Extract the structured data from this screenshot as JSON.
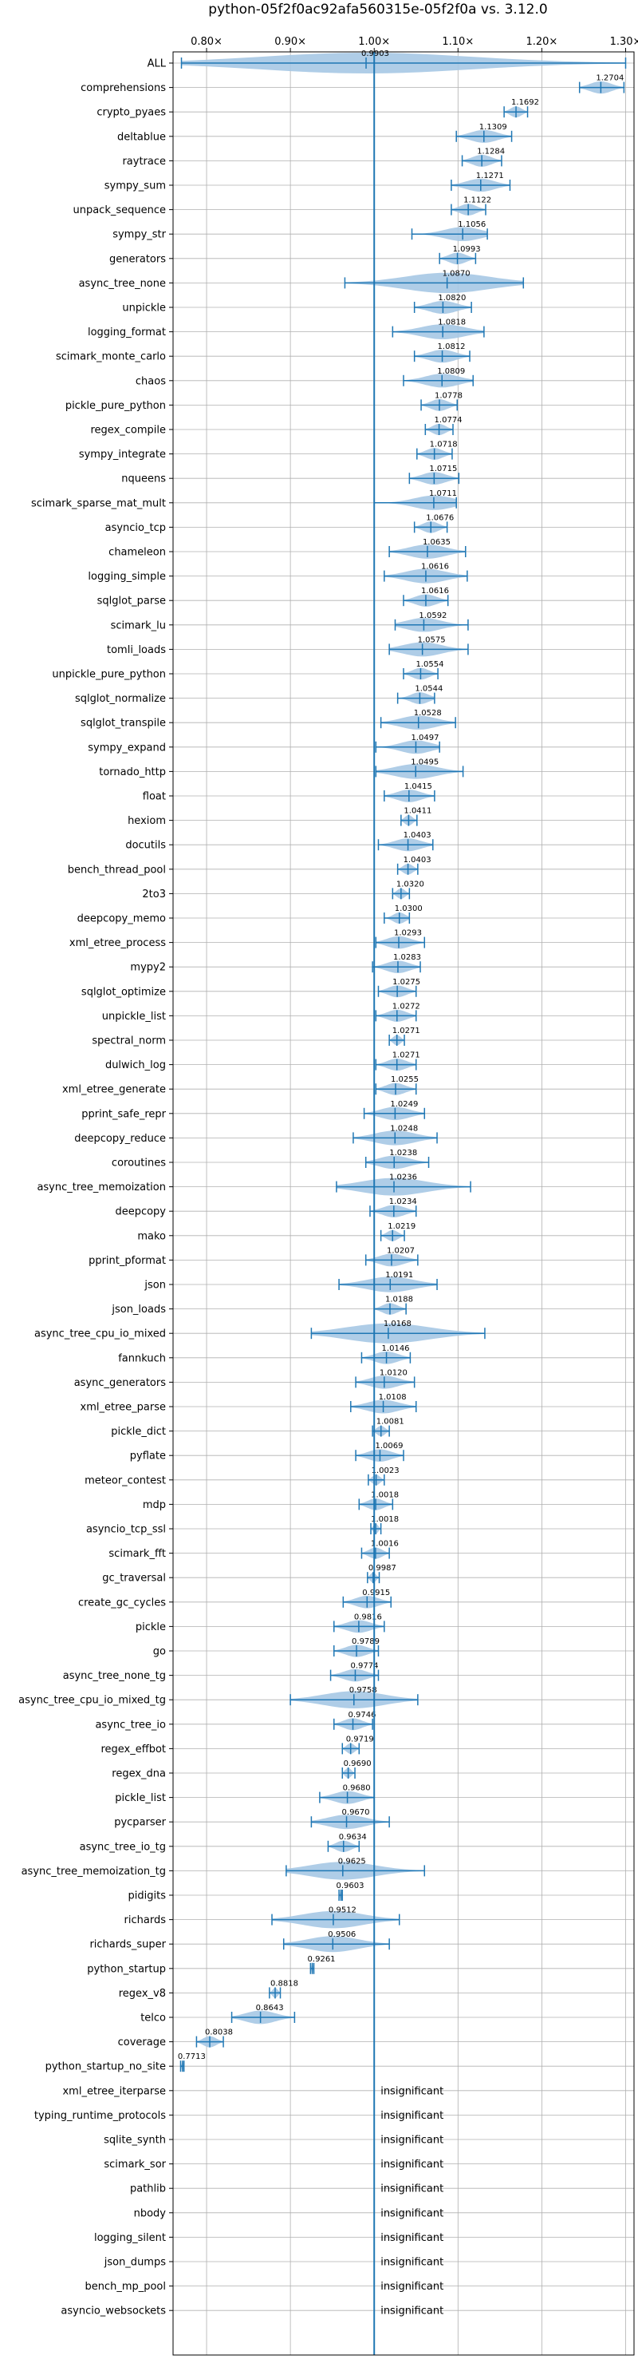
{
  "chart_data": {
    "type": "violin",
    "title": "python-05f2f0ac92afa560315e-05f2f0a vs. 3.12.0",
    "xlim": [
      0.76,
      1.31
    ],
    "xticks": [
      0.8,
      0.9,
      1.0,
      1.1,
      1.2,
      1.3
    ],
    "xtick_labels": [
      "0.80×",
      "0.90×",
      "1.00×",
      "1.10×",
      "1.20×",
      "1.30×"
    ],
    "grid": true,
    "reference_line": 1.0,
    "colors": {
      "body": "#a6c8e4",
      "line": "#1f77b4",
      "ref": "#1f77b4",
      "grid": "#b0b0b0"
    },
    "insignificant_text": "insignificant",
    "benchmarks": [
      {
        "name": "ALL",
        "value": 0.9903,
        "min": 0.77,
        "max": 1.3
      },
      {
        "name": "comprehensions",
        "value": 1.2704,
        "min": 1.245,
        "max": 1.298
      },
      {
        "name": "crypto_pyaes",
        "value": 1.1692,
        "min": 1.155,
        "max": 1.183
      },
      {
        "name": "deltablue",
        "value": 1.1309,
        "min": 1.098,
        "max": 1.164
      },
      {
        "name": "raytrace",
        "value": 1.1284,
        "min": 1.105,
        "max": 1.152
      },
      {
        "name": "sympy_sum",
        "value": 1.1271,
        "min": 1.092,
        "max": 1.162
      },
      {
        "name": "unpack_sequence",
        "value": 1.1122,
        "min": 1.092,
        "max": 1.133
      },
      {
        "name": "sympy_str",
        "value": 1.1056,
        "min": 1.045,
        "max": 1.135
      },
      {
        "name": "generators",
        "value": 1.0993,
        "min": 1.078,
        "max": 1.121
      },
      {
        "name": "async_tree_none",
        "value": 1.087,
        "min": 0.965,
        "max": 1.178
      },
      {
        "name": "unpickle",
        "value": 1.082,
        "min": 1.048,
        "max": 1.116
      },
      {
        "name": "logging_format",
        "value": 1.0818,
        "min": 1.022,
        "max": 1.131
      },
      {
        "name": "scimark_monte_carlo",
        "value": 1.0812,
        "min": 1.048,
        "max": 1.114
      },
      {
        "name": "chaos",
        "value": 1.0809,
        "min": 1.035,
        "max": 1.118
      },
      {
        "name": "pickle_pure_python",
        "value": 1.0778,
        "min": 1.056,
        "max": 1.099
      },
      {
        "name": "regex_compile",
        "value": 1.0774,
        "min": 1.061,
        "max": 1.094
      },
      {
        "name": "sympy_integrate",
        "value": 1.0718,
        "min": 1.051,
        "max": 1.093
      },
      {
        "name": "nqueens",
        "value": 1.0715,
        "min": 1.042,
        "max": 1.101
      },
      {
        "name": "scimark_sparse_mat_mult",
        "value": 1.0711,
        "min": 1.0,
        "max": 1.098
      },
      {
        "name": "asyncio_tcp",
        "value": 1.0676,
        "min": 1.048,
        "max": 1.087
      },
      {
        "name": "chameleon",
        "value": 1.0635,
        "min": 1.018,
        "max": 1.109
      },
      {
        "name": "logging_simple",
        "value": 1.0616,
        "min": 1.012,
        "max": 1.111
      },
      {
        "name": "sqlglot_parse",
        "value": 1.0616,
        "min": 1.035,
        "max": 1.088
      },
      {
        "name": "scimark_lu",
        "value": 1.0592,
        "min": 1.025,
        "max": 1.112
      },
      {
        "name": "tomli_loads",
        "value": 1.0575,
        "min": 1.018,
        "max": 1.112
      },
      {
        "name": "unpickle_pure_python",
        "value": 1.0554,
        "min": 1.035,
        "max": 1.076
      },
      {
        "name": "sqlglot_normalize",
        "value": 1.0544,
        "min": 1.028,
        "max": 1.072
      },
      {
        "name": "sqlglot_transpile",
        "value": 1.0528,
        "min": 1.008,
        "max": 1.097
      },
      {
        "name": "sympy_expand",
        "value": 1.0497,
        "min": 1.002,
        "max": 1.078
      },
      {
        "name": "tornado_http",
        "value": 1.0495,
        "min": 1.002,
        "max": 1.106
      },
      {
        "name": "float",
        "value": 1.0415,
        "min": 1.012,
        "max": 1.072
      },
      {
        "name": "hexiom",
        "value": 1.0411,
        "min": 1.032,
        "max": 1.051
      },
      {
        "name": "docutils",
        "value": 1.0403,
        "min": 1.005,
        "max": 1.07
      },
      {
        "name": "bench_thread_pool",
        "value": 1.0403,
        "min": 1.028,
        "max": 1.052
      },
      {
        "name": "2to3",
        "value": 1.032,
        "min": 1.022,
        "max": 1.042
      },
      {
        "name": "deepcopy_memo",
        "value": 1.03,
        "min": 1.012,
        "max": 1.042
      },
      {
        "name": "xml_etree_process",
        "value": 1.0293,
        "min": 1.002,
        "max": 1.06
      },
      {
        "name": "mypy2",
        "value": 1.0283,
        "min": 0.998,
        "max": 1.055
      },
      {
        "name": "sqlglot_optimize",
        "value": 1.0275,
        "min": 1.005,
        "max": 1.05
      },
      {
        "name": "unpickle_list",
        "value": 1.0272,
        "min": 1.002,
        "max": 1.05
      },
      {
        "name": "spectral_norm",
        "value": 1.0271,
        "min": 1.018,
        "max": 1.036
      },
      {
        "name": "dulwich_log",
        "value": 1.0271,
        "min": 1.002,
        "max": 1.05
      },
      {
        "name": "xml_etree_generate",
        "value": 1.0255,
        "min": 1.002,
        "max": 1.05
      },
      {
        "name": "pprint_safe_repr",
        "value": 1.0249,
        "min": 0.988,
        "max": 1.06
      },
      {
        "name": "deepcopy_reduce",
        "value": 1.0248,
        "min": 0.975,
        "max": 1.075
      },
      {
        "name": "coroutines",
        "value": 1.0238,
        "min": 0.99,
        "max": 1.065
      },
      {
        "name": "async_tree_memoization",
        "value": 1.0236,
        "min": 0.955,
        "max": 1.115
      },
      {
        "name": "deepcopy",
        "value": 1.0234,
        "min": 0.995,
        "max": 1.05
      },
      {
        "name": "mako",
        "value": 1.0219,
        "min": 1.008,
        "max": 1.036
      },
      {
        "name": "pprint_pformat",
        "value": 1.0207,
        "min": 0.99,
        "max": 1.052
      },
      {
        "name": "json",
        "value": 1.0191,
        "min": 0.958,
        "max": 1.075
      },
      {
        "name": "json_loads",
        "value": 1.0188,
        "min": 1.0,
        "max": 1.038
      },
      {
        "name": "async_tree_cpu_io_mixed",
        "value": 1.0168,
        "min": 0.925,
        "max": 1.132
      },
      {
        "name": "fannkuch",
        "value": 1.0146,
        "min": 0.985,
        "max": 1.043
      },
      {
        "name": "async_generators",
        "value": 1.012,
        "min": 0.978,
        "max": 1.048
      },
      {
        "name": "xml_etree_parse",
        "value": 1.0108,
        "min": 0.972,
        "max": 1.05
      },
      {
        "name": "pickle_dict",
        "value": 1.0081,
        "min": 0.998,
        "max": 1.018
      },
      {
        "name": "pyflate",
        "value": 1.0069,
        "min": 0.978,
        "max": 1.035
      },
      {
        "name": "meteor_contest",
        "value": 1.0023,
        "min": 0.993,
        "max": 1.012
      },
      {
        "name": "mdp",
        "value": 1.0018,
        "min": 0.982,
        "max": 1.022
      },
      {
        "name": "asyncio_tcp_ssl",
        "value": 1.0018,
        "min": 0.996,
        "max": 1.008
      },
      {
        "name": "scimark_fft",
        "value": 1.0016,
        "min": 0.985,
        "max": 1.018
      },
      {
        "name": "gc_traversal",
        "value": 0.9987,
        "min": 0.992,
        "max": 1.006
      },
      {
        "name": "create_gc_cycles",
        "value": 0.9915,
        "min": 0.963,
        "max": 1.02
      },
      {
        "name": "pickle",
        "value": 0.9816,
        "min": 0.952,
        "max": 1.012
      },
      {
        "name": "go",
        "value": 0.9789,
        "min": 0.952,
        "max": 1.005
      },
      {
        "name": "async_tree_none_tg",
        "value": 0.9774,
        "min": 0.948,
        "max": 1.005
      },
      {
        "name": "async_tree_cpu_io_mixed_tg",
        "value": 0.9758,
        "min": 0.9,
        "max": 1.052
      },
      {
        "name": "async_tree_io",
        "value": 0.9746,
        "min": 0.952,
        "max": 0.998
      },
      {
        "name": "regex_effbot",
        "value": 0.9719,
        "min": 0.962,
        "max": 0.982
      },
      {
        "name": "regex_dna",
        "value": 0.969,
        "min": 0.962,
        "max": 0.977
      },
      {
        "name": "pickle_list",
        "value": 0.968,
        "min": 0.935,
        "max": 1.0
      },
      {
        "name": "pycparser",
        "value": 0.967,
        "min": 0.925,
        "max": 1.018
      },
      {
        "name": "async_tree_io_tg",
        "value": 0.9634,
        "min": 0.945,
        "max": 0.982
      },
      {
        "name": "async_tree_memoization_tg",
        "value": 0.9625,
        "min": 0.895,
        "max": 1.06
      },
      {
        "name": "pidigits",
        "value": 0.9603,
        "min": 0.958,
        "max": 0.962
      },
      {
        "name": "richards",
        "value": 0.9512,
        "min": 0.878,
        "max": 1.03
      },
      {
        "name": "richards_super",
        "value": 0.9506,
        "min": 0.892,
        "max": 1.018
      },
      {
        "name": "python_startup",
        "value": 0.9261,
        "min": 0.924,
        "max": 0.928
      },
      {
        "name": "regex_v8",
        "value": 0.8818,
        "min": 0.875,
        "max": 0.888
      },
      {
        "name": "telco",
        "value": 0.8643,
        "min": 0.83,
        "max": 0.905
      },
      {
        "name": "coverage",
        "value": 0.8038,
        "min": 0.788,
        "max": 0.82
      },
      {
        "name": "python_startup_no_site",
        "value": 0.7713,
        "min": 0.769,
        "max": 0.773
      },
      {
        "name": "xml_etree_iterparse",
        "value": null
      },
      {
        "name": "typing_runtime_protocols",
        "value": null
      },
      {
        "name": "sqlite_synth",
        "value": null
      },
      {
        "name": "scimark_sor",
        "value": null
      },
      {
        "name": "pathlib",
        "value": null
      },
      {
        "name": "nbody",
        "value": null
      },
      {
        "name": "logging_silent",
        "value": null
      },
      {
        "name": "json_dumps",
        "value": null
      },
      {
        "name": "bench_mp_pool",
        "value": null
      },
      {
        "name": "asyncio_websockets",
        "value": null
      }
    ]
  }
}
